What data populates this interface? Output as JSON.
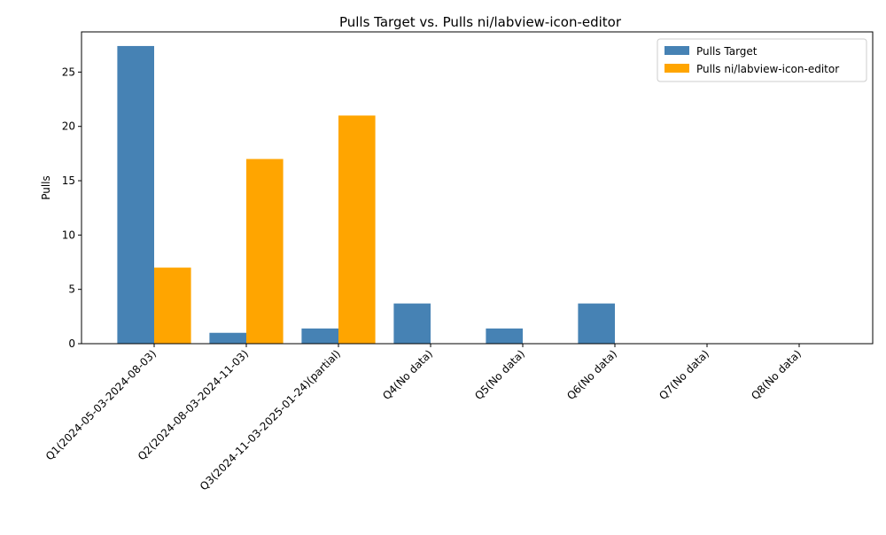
{
  "chart_data": {
    "type": "bar",
    "title": "Pulls Target vs. Pulls ni/labview-icon-editor",
    "xlabel": "",
    "ylabel": "Pulls",
    "ylim": [
      0,
      28.7
    ],
    "yticks": [
      0,
      5,
      10,
      15,
      20,
      25
    ],
    "categories": [
      "Q1(2024-05-03-2024-08-03)",
      "Q2(2024-08-03-2024-11-03)",
      "Q3(2024-11-03-2025-01-24)(partial)",
      "Q4(No data)",
      "Q5(No data)",
      "Q6(No data)",
      "Q7(No data)",
      "Q8(No data)"
    ],
    "series": [
      {
        "name": "Pulls Target",
        "color": "#4682b4",
        "values": [
          27.4,
          1.0,
          1.4,
          3.7,
          1.4,
          3.7,
          0,
          0
        ]
      },
      {
        "name": "Pulls ni/labview-icon-editor",
        "color": "#ffa500",
        "values": [
          7,
          17,
          21,
          0,
          0,
          0,
          0,
          0
        ]
      }
    ],
    "legend_position": "top-right",
    "grid": false
  }
}
